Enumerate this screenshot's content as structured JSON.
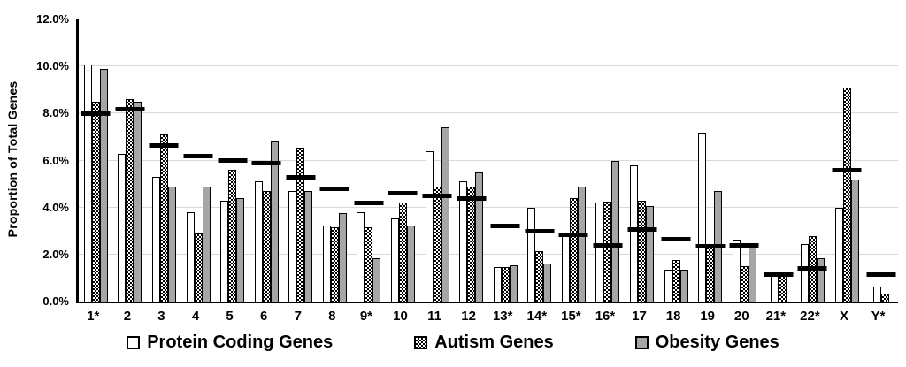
{
  "y_axis": {
    "title": "Proportion of Total Genes",
    "tick_labels": [
      "0.0%",
      "2.0%",
      "4.0%",
      "6.0%",
      "8.0%",
      "10.0%",
      "12.0%"
    ],
    "tick_values": [
      0,
      2,
      4,
      6,
      8,
      10,
      12
    ]
  },
  "colors": {
    "bar_white": "#ffffff",
    "bar_gray": "#a6a6a6",
    "pattern_black": "#000000",
    "gridline": "#d9d9d9",
    "axis": "#000000",
    "dash_marker": "#000000"
  },
  "chart_data": {
    "type": "bar",
    "title": "",
    "xlabel": "",
    "ylabel": "Proportion of Total Genes",
    "ylim": [
      0,
      12
    ],
    "y_unit": "%",
    "grid": true,
    "legend_position": "bottom",
    "categories": [
      "1*",
      "2",
      "3",
      "4",
      "5",
      "6",
      "7",
      "8",
      "9*",
      "10",
      "11",
      "12",
      "13*",
      "14*",
      "15*",
      "16*",
      "17",
      "18",
      "19",
      "20",
      "21*",
      "22*",
      "X",
      "Y*"
    ],
    "series": [
      {
        "name": "Protein Coding Genes",
        "style": "white",
        "values": [
          10.1,
          6.3,
          5.3,
          3.8,
          4.3,
          5.1,
          4.7,
          3.25,
          3.8,
          3.55,
          6.4,
          5.1,
          1.45,
          4.0,
          2.9,
          4.2,
          5.8,
          1.35,
          7.2,
          2.65,
          1.15,
          2.45,
          4.0,
          0.65
        ]
      },
      {
        "name": "Autism Genes",
        "style": "checkered",
        "values": [
          8.5,
          8.6,
          7.1,
          2.9,
          5.6,
          4.7,
          6.55,
          3.15,
          3.15,
          4.2,
          4.9,
          4.9,
          1.45,
          2.15,
          4.4,
          4.25,
          4.3,
          1.75,
          2.4,
          1.5,
          1.15,
          2.8,
          9.1,
          0.35
        ]
      },
      {
        "name": "Obesity Genes",
        "style": "gray",
        "values": [
          9.9,
          8.5,
          4.9,
          4.9,
          4.4,
          6.8,
          4.7,
          3.75,
          1.85,
          3.25,
          7.4,
          5.5,
          1.55,
          1.6,
          4.9,
          6.0,
          4.05,
          1.35,
          4.7,
          2.35,
          0,
          1.85,
          5.2,
          0
        ]
      }
    ],
    "dash_markers": {
      "style": "black-dash",
      "values": [
        8.0,
        8.2,
        6.65,
        6.2,
        6.0,
        5.9,
        5.3,
        4.8,
        4.2,
        4.6,
        4.5,
        4.4,
        3.2,
        3.0,
        2.85,
        2.4,
        3.05,
        2.65,
        2.35,
        2.4,
        1.15,
        1.4,
        5.6,
        1.15
      ]
    }
  }
}
